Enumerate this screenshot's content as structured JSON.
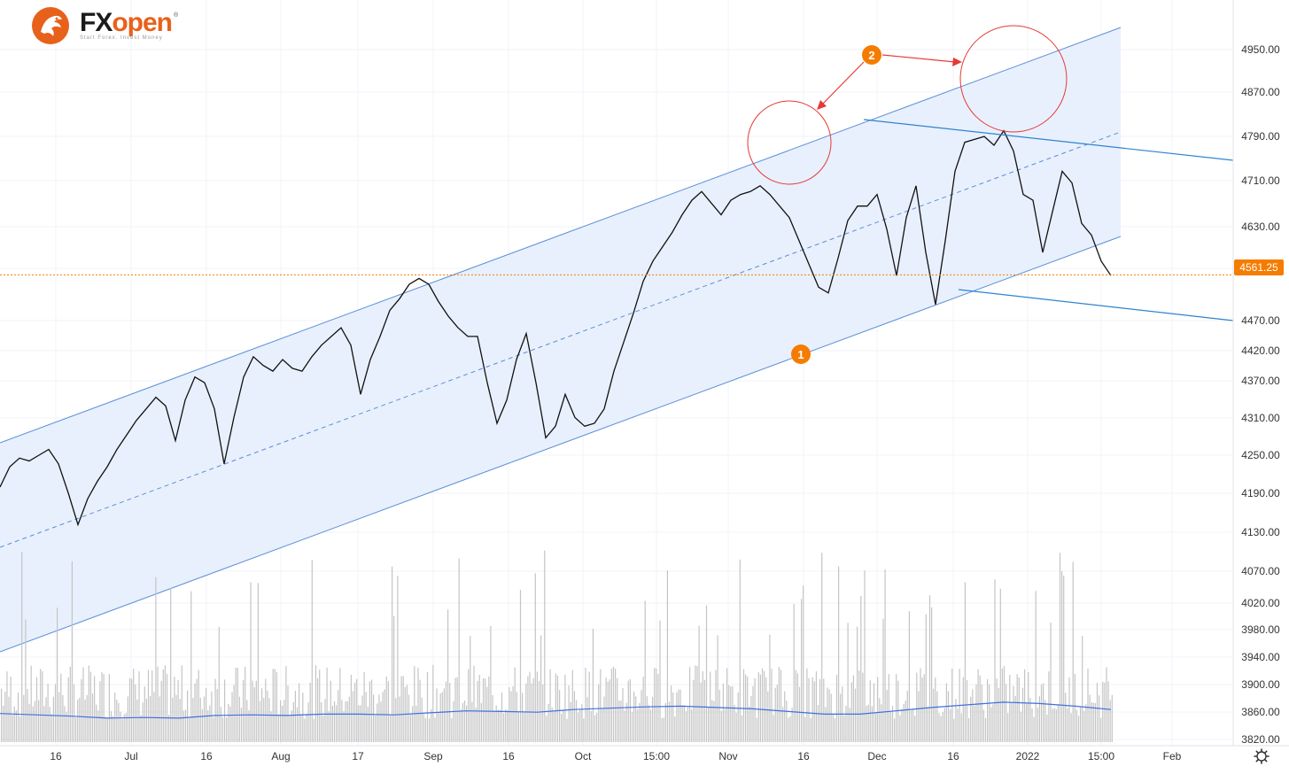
{
  "brand": {
    "name_part1": "FX",
    "name_part2": "open",
    "tagline": "Start Forex. Invest Money",
    "trademark": "®",
    "logo_color": "#e8611a"
  },
  "price_axis": {
    "labels": [
      "4950.00",
      "4870.00",
      "4790.00",
      "4710.00",
      "4630.00",
      "4561.25",
      "4470.00",
      "4420.00",
      "4370.00",
      "4310.00",
      "4250.00",
      "4190.00",
      "4130.00",
      "4070.00",
      "4020.00",
      "3980.00",
      "3940.00",
      "3900.00",
      "3860.00",
      "3820.00"
    ],
    "current_price": "4561.25",
    "current_price_color": "#f57c00"
  },
  "time_axis": {
    "labels": [
      "16",
      "Jul",
      "16",
      "Aug",
      "17",
      "Sep",
      "16",
      "Oct",
      "15:00",
      "Nov",
      "16",
      "Dec",
      "16",
      "2022",
      "15:00",
      "Feb"
    ]
  },
  "annotations": {
    "marker_1": "1",
    "marker_2": "2",
    "marker_color": "#f57c00",
    "circle_color": "#e53935"
  },
  "colors": {
    "channel_line": "#5b8fd6",
    "channel_fill": "#e8f0fd",
    "downtrend_line": "#2f83d0",
    "price_line": "#111111",
    "volume_bar": "#c4c4c4",
    "volume_ma": "#3f6fe0",
    "grid": "#f0f3fa"
  },
  "chart_data": {
    "type": "line",
    "series": [
      {
        "values": [
          4195,
          4230,
          4245,
          4240,
          4250,
          4260,
          4235,
          4185,
          4130,
          4175,
          4205,
          4230,
          4260,
          4285,
          4310,
          4330,
          4350,
          4335,
          4275,
          4345,
          4385,
          4375,
          4330,
          4235,
          4315,
          4385,
          4420,
          4405,
          4395,
          4415,
          4400,
          4395,
          4420,
          4440,
          4455,
          4470,
          4440,
          4355,
          4415,
          4455,
          4500,
          4520,
          4545,
          4555,
          4545,
          4515,
          4490,
          4470,
          4455,
          4455,
          4375,
          4305,
          4345,
          4415,
          4460,
          4375,
          4280,
          4300,
          4355,
          4315,
          4300,
          4305,
          4330,
          4395,
          4445,
          4495,
          4550,
          4585,
          4610,
          4635,
          4665,
          4690,
          4705,
          4685,
          4665,
          4690,
          4700,
          4705,
          4715,
          4700,
          4680,
          4660,
          4620,
          4580,
          4540,
          4530,
          4590,
          4655,
          4680,
          4680,
          4700,
          4640,
          4560,
          4660,
          4715,
          4600,
          4510,
          4620,
          4740,
          4790,
          4795,
          4800,
          4785,
          4810,
          4775,
          4700,
          4690,
          4600,
          4670,
          4740,
          4720,
          4650,
          4630,
          4585,
          4560
        ]
      }
    ],
    "volume_ma": [
      3863,
      3861,
      3859,
      3856,
      3857,
      3856,
      3860,
      3861,
      3860,
      3862,
      3862,
      3861,
      3864,
      3867,
      3866,
      3865,
      3869,
      3871,
      3873,
      3874,
      3872,
      3870,
      3866,
      3862,
      3862,
      3867,
      3872,
      3876,
      3880,
      3878,
      3874,
      3869
    ],
    "volume_ylim": [
      3820,
      4110
    ],
    "ylim": [
      3810,
      4990
    ],
    "x_ticks": [
      "16",
      "Jul",
      "16",
      "Aug",
      "17",
      "Sep",
      "16",
      "Oct",
      "15:00",
      "Nov",
      "16",
      "Dec",
      "16",
      "2022",
      "15:00",
      "Feb"
    ],
    "last_price": 4561.25,
    "grid": true
  }
}
